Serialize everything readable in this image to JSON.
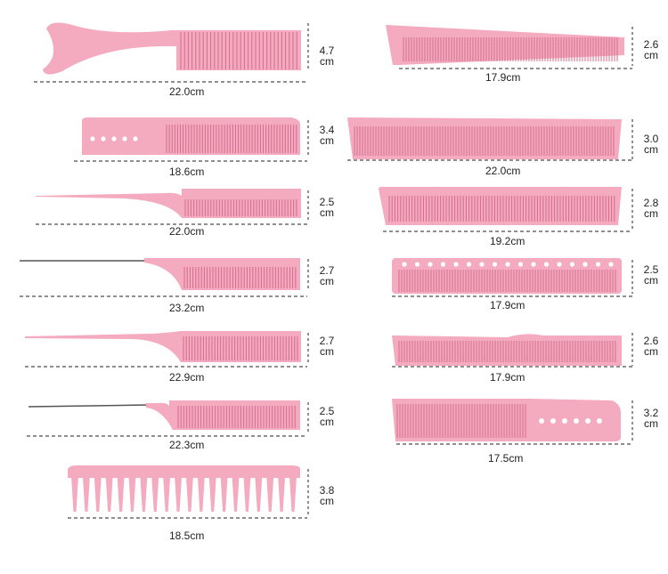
{
  "colors": {
    "comb": "#f4aabf",
    "comb_dark": "#e58aa5",
    "teeth_line": "#d46c8d",
    "handle_hole": "#ffffff",
    "dash": "#222222",
    "pin": "#555555"
  },
  "combs": [
    {
      "id": "comb-1",
      "style": "handle-round",
      "length": "22.0cm",
      "width_value": "4.7",
      "width_unit": "cm"
    },
    {
      "id": "comb-2",
      "style": "cutting-holes-left",
      "length": "18.6cm",
      "width_value": "3.4",
      "width_unit": "cm"
    },
    {
      "id": "comb-3",
      "style": "tail-plastic",
      "length": "22.0cm",
      "width_value": "2.5",
      "width_unit": "cm"
    },
    {
      "id": "comb-4",
      "style": "tail-pin",
      "length": "23.2cm",
      "width_value": "2.7",
      "width_unit": "cm"
    },
    {
      "id": "comb-5",
      "style": "tail-plastic-long",
      "length": "22.9cm",
      "width_value": "2.7",
      "width_unit": "cm"
    },
    {
      "id": "comb-6",
      "style": "tail-pin-short",
      "length": "22.3cm",
      "width_value": "2.5",
      "width_unit": "cm"
    },
    {
      "id": "comb-7",
      "style": "wide-tooth",
      "length": "18.5cm",
      "width_value": "3.8",
      "width_unit": "cm"
    },
    {
      "id": "comb-8",
      "style": "tapered",
      "length": "17.9cm",
      "width_value": "2.6",
      "width_unit": "cm"
    },
    {
      "id": "comb-9",
      "style": "long-flat",
      "length": "22.0cm",
      "width_value": "3.0",
      "width_unit": "cm"
    },
    {
      "id": "comb-10",
      "style": "flat",
      "length": "19.2cm",
      "width_value": "2.8",
      "width_unit": "cm"
    },
    {
      "id": "comb-11",
      "style": "holes-top",
      "length": "17.9cm",
      "width_value": "2.5",
      "width_unit": "cm"
    },
    {
      "id": "comb-12",
      "style": "wavy-teeth",
      "length": "17.9cm",
      "width_value": "2.6",
      "width_unit": "cm"
    },
    {
      "id": "comb-13",
      "style": "cutting-holes-right",
      "length": "17.5cm",
      "width_value": "3.2",
      "width_unit": "cm"
    }
  ]
}
